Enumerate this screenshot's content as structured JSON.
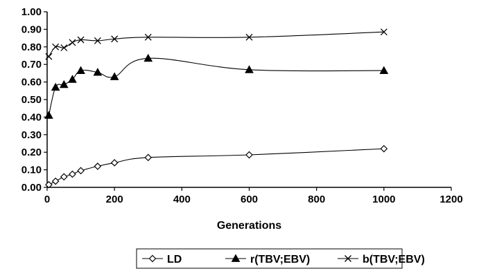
{
  "chart_data": {
    "type": "line",
    "title": "",
    "xlabel": "Generations",
    "ylabel": "",
    "xlim": [
      0,
      1200
    ],
    "ylim": [
      0,
      1.0
    ],
    "xticks": [
      "0",
      "200",
      "400",
      "600",
      "800",
      "1000",
      "1200"
    ],
    "yticks": [
      "0.00",
      "0.10",
      "0.20",
      "0.30",
      "0.40",
      "0.50",
      "0.60",
      "0.70",
      "0.80",
      "0.90",
      "1.00"
    ],
    "grid": false,
    "legend_position": "bottom",
    "series": [
      {
        "name": "LD",
        "marker": "diamond-open",
        "x": [
          5,
          25,
          50,
          75,
          100,
          150,
          200,
          300,
          600,
          1000
        ],
        "y": [
          0.015,
          0.035,
          0.06,
          0.075,
          0.095,
          0.12,
          0.14,
          0.17,
          0.185,
          0.22
        ]
      },
      {
        "name": "r(TBV;EBV)",
        "marker": "triangle-filled",
        "x": [
          5,
          25,
          50,
          75,
          100,
          150,
          200,
          300,
          600,
          1000
        ],
        "y": [
          0.41,
          0.57,
          0.585,
          0.615,
          0.665,
          0.655,
          0.63,
          0.735,
          0.67,
          0.665
        ]
      },
      {
        "name": "b(TBV;EBV)",
        "marker": "x",
        "x": [
          5,
          25,
          50,
          75,
          100,
          150,
          200,
          300,
          600,
          1000
        ],
        "y": [
          0.745,
          0.8,
          0.795,
          0.825,
          0.84,
          0.835,
          0.845,
          0.855,
          0.855,
          0.885
        ]
      }
    ]
  }
}
